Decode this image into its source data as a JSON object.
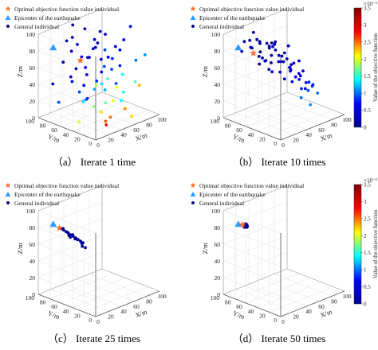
{
  "legend": {
    "optimal": "Optimal objective function value individual",
    "epicenter": "Epicenter of the earthquake",
    "general": "General individual"
  },
  "axes": {
    "xlabel": "X/m",
    "ylabel": "Y/m",
    "zlabel": "Z/m",
    "x_ticks": [
      "0",
      "20",
      "40",
      "60",
      "80",
      "100"
    ],
    "y_ticks": [
      "0",
      "20",
      "40",
      "60",
      "80",
      "100"
    ],
    "z_ticks": [
      "0",
      "20",
      "40",
      "60",
      "80",
      "100"
    ],
    "xlim": [
      0,
      100
    ],
    "ylim": [
      0,
      100
    ],
    "zlim": [
      0,
      100
    ]
  },
  "colorbar": {
    "label": "Value of the objective function",
    "exponent": "×10⁻³",
    "ticks": [
      "0",
      "0.5",
      "1",
      "1.5",
      "2",
      "2.5",
      "3",
      "3.5"
    ],
    "range": [
      0,
      3.5
    ],
    "colormap": [
      "#00008f",
      "#0000ff",
      "#00ffff",
      "#ffff00",
      "#ff0000",
      "#800000"
    ]
  },
  "colors": {
    "optimal": "#ff6f2b",
    "epicenter": "#2d9cff",
    "general_low": "#0a0a78"
  },
  "chart_data": [
    {
      "type": "scatter3d",
      "caption": "（a） Iterate 1 time",
      "epicenter": [
        10,
        85,
        85
      ],
      "optimal": [
        30,
        60,
        70
      ],
      "show_colorbar": false,
      "points": [
        [
          45,
          90,
          100,
          0.2
        ],
        [
          55,
          80,
          95,
          0.3
        ],
        [
          70,
          70,
          90,
          0.2
        ],
        [
          40,
          85,
          88,
          0.3
        ],
        [
          60,
          50,
          95,
          0.4
        ],
        [
          80,
          40,
          85,
          0.5
        ],
        [
          25,
          70,
          80,
          0.3
        ],
        [
          50,
          60,
          78,
          0.4
        ],
        [
          65,
          30,
          80,
          0.7
        ],
        [
          35,
          50,
          75,
          0.5
        ],
        [
          75,
          80,
          72,
          0.3
        ],
        [
          85,
          60,
          70,
          0.6
        ],
        [
          20,
          40,
          70,
          0.6
        ],
        [
          45,
          35,
          65,
          0.9
        ],
        [
          55,
          75,
          62,
          0.4
        ],
        [
          30,
          90,
          60,
          0.2
        ],
        [
          90,
          30,
          60,
          1.0
        ],
        [
          15,
          60,
          55,
          0.5
        ],
        [
          60,
          20,
          55,
          1.4
        ],
        [
          40,
          60,
          50,
          0.7
        ],
        [
          70,
          50,
          50,
          0.9
        ],
        [
          85,
          85,
          48,
          0.4
        ],
        [
          25,
          30,
          45,
          1.2
        ],
        [
          50,
          45,
          40,
          1.3
        ],
        [
          80,
          20,
          40,
          1.6
        ],
        [
          35,
          80,
          38,
          0.5
        ],
        [
          60,
          65,
          35,
          0.8
        ],
        [
          15,
          20,
          30,
          1.8
        ],
        [
          45,
          20,
          28,
          2.0
        ],
        [
          75,
          35,
          25,
          1.5
        ],
        [
          30,
          55,
          22,
          1.3
        ],
        [
          55,
          10,
          18,
          2.4
        ],
        [
          20,
          5,
          15,
          2.6
        ],
        [
          40,
          35,
          12,
          2.2
        ],
        [
          65,
          55,
          10,
          1.7
        ],
        [
          85,
          50,
          8,
          1.4
        ],
        [
          10,
          40,
          8,
          2.0
        ],
        [
          30,
          15,
          5,
          2.8
        ],
        [
          50,
          30,
          4,
          2.5
        ],
        [
          70,
          15,
          3,
          2.2
        ],
        [
          95,
          70,
          20,
          0.9
        ],
        [
          90,
          90,
          30,
          0.6
        ],
        [
          12,
          88,
          40,
          0.4
        ],
        [
          28,
          10,
          62,
          1.6
        ],
        [
          52,
          92,
          45,
          0.3
        ],
        [
          62,
          40,
          68,
          0.8
        ],
        [
          78,
          65,
          58,
          0.7
        ],
        [
          38,
          5,
          50,
          2.1
        ],
        [
          22,
          75,
          92,
          0.2
        ],
        [
          88,
          12,
          72,
          1.1
        ],
        [
          5,
          30,
          90,
          0.7
        ],
        [
          95,
          45,
          95,
          0.6
        ],
        [
          48,
          70,
          15,
          1.0
        ],
        [
          68,
          90,
          5,
          0.8
        ],
        [
          10,
          10,
          60,
          1.9
        ],
        [
          33,
          65,
          30,
          0.9
        ],
        [
          58,
          85,
          25,
          0.6
        ],
        [
          82,
          75,
          15,
          1.2
        ],
        [
          43,
          48,
          85,
          0.4
        ],
        [
          73,
          5,
          42,
          2.3
        ],
        [
          18,
          52,
          95,
          0.3
        ],
        [
          92,
          60,
          45,
          0.8
        ],
        [
          5,
          70,
          25,
          0.9
        ],
        [
          63,
          72,
          82,
          0.3
        ],
        [
          37,
          25,
          90,
          0.9
        ]
      ]
    },
    {
      "type": "scatter3d",
      "caption": "（b） Iterate 10 times",
      "epicenter": [
        10,
        85,
        85
      ],
      "optimal": [
        22,
        72,
        78
      ],
      "show_colorbar": true,
      "points": [
        [
          30,
          70,
          90,
          0.1
        ],
        [
          35,
          75,
          85,
          0.1
        ],
        [
          40,
          60,
          88,
          0.1
        ],
        [
          25,
          80,
          82,
          0.1
        ],
        [
          45,
          70,
          80,
          0.1
        ],
        [
          50,
          65,
          85,
          0.1
        ],
        [
          20,
          60,
          78,
          0.1
        ],
        [
          35,
          55,
          76,
          0.2
        ],
        [
          55,
          75,
          75,
          0.1
        ],
        [
          40,
          80,
          72,
          0.1
        ],
        [
          30,
          50,
          70,
          0.2
        ],
        [
          60,
          60,
          70,
          0.2
        ],
        [
          45,
          45,
          68,
          0.3
        ],
        [
          25,
          65,
          66,
          0.1
        ],
        [
          50,
          55,
          64,
          0.2
        ],
        [
          65,
          70,
          62,
          0.2
        ],
        [
          35,
          40,
          60,
          0.4
        ],
        [
          55,
          45,
          58,
          0.4
        ],
        [
          70,
          55,
          56,
          0.3
        ],
        [
          40,
          65,
          55,
          0.2
        ],
        [
          60,
          35,
          52,
          0.5
        ],
        [
          75,
          65,
          50,
          0.3
        ],
        [
          45,
          30,
          48,
          0.6
        ],
        [
          80,
          50,
          45,
          0.5
        ],
        [
          65,
          40,
          42,
          0.6
        ],
        [
          55,
          25,
          38,
          0.8
        ],
        [
          85,
          60,
          35,
          0.5
        ],
        [
          70,
          30,
          30,
          0.9
        ],
        [
          90,
          45,
          25,
          0.8
        ],
        [
          60,
          15,
          20,
          1.1
        ],
        [
          28,
          85,
          88,
          0.1
        ],
        [
          42,
          88,
          84,
          0.1
        ],
        [
          18,
          70,
          86,
          0.1
        ],
        [
          52,
          82,
          78,
          0.1
        ],
        [
          38,
          62,
          82,
          0.1
        ],
        [
          62,
          78,
          68,
          0.2
        ],
        [
          48,
          38,
          62,
          0.4
        ],
        [
          72,
          48,
          60,
          0.4
        ],
        [
          33,
          30,
          55,
          0.5
        ],
        [
          78,
          70,
          40,
          0.4
        ],
        [
          68,
          58,
          48,
          0.3
        ],
        [
          58,
          68,
          58,
          0.2
        ],
        [
          44,
          52,
          74,
          0.2
        ],
        [
          22,
          52,
          74,
          0.2
        ],
        [
          82,
          35,
          32,
          0.8
        ],
        [
          50,
          20,
          30,
          1.0
        ],
        [
          88,
          55,
          20,
          0.7
        ],
        [
          15,
          80,
          92,
          0.1
        ],
        [
          57,
          50,
          82,
          0.2
        ],
        [
          36,
          72,
          68,
          0.1
        ],
        [
          74,
          38,
          36,
          0.7
        ],
        [
          64,
          22,
          44,
          0.8
        ],
        [
          47,
          78,
          60,
          0.2
        ],
        [
          26,
          44,
          62,
          0.4
        ],
        [
          92,
          38,
          18,
          1.0
        ],
        [
          40,
          92,
          92,
          0.1
        ],
        [
          20,
          90,
          76,
          0.1
        ],
        [
          66,
          84,
          72,
          0.2
        ],
        [
          54,
          34,
          50,
          0.6
        ],
        [
          80,
          78,
          52,
          0.3
        ]
      ]
    },
    {
      "type": "scatter3d",
      "caption": "（c） Iterate 25 times",
      "epicenter": [
        10,
        85,
        85
      ],
      "optimal": [
        15,
        80,
        80
      ],
      "show_colorbar": false,
      "points": [
        [
          16,
          78,
          80,
          0.05
        ],
        [
          18,
          76,
          78,
          0.05
        ],
        [
          20,
          74,
          76,
          0.05
        ],
        [
          22,
          72,
          74,
          0.05
        ],
        [
          24,
          70,
          72,
          0.05
        ],
        [
          26,
          68,
          70,
          0.05
        ],
        [
          28,
          66,
          68,
          0.05
        ],
        [
          30,
          64,
          66,
          0.05
        ],
        [
          32,
          62,
          64,
          0.05
        ],
        [
          34,
          60,
          62,
          0.05
        ],
        [
          19,
          78,
          79,
          0.05
        ],
        [
          23,
          75,
          74,
          0.05
        ],
        [
          27,
          70,
          71,
          0.05
        ],
        [
          31,
          66,
          65,
          0.05
        ],
        [
          35,
          63,
          60,
          0.05
        ],
        [
          25,
          72,
          68,
          0.05
        ],
        [
          29,
          68,
          66,
          0.05
        ],
        [
          33,
          60,
          58,
          0.05
        ],
        [
          21,
          70,
          72,
          0.05
        ],
        [
          36,
          58,
          56,
          0.05
        ]
      ]
    },
    {
      "type": "scatter3d",
      "caption": "（d） Iterate 50 times",
      "epicenter": [
        10,
        85,
        85
      ],
      "optimal": [
        14,
        82,
        84
      ],
      "show_colorbar": true,
      "points": [
        [
          15,
          81,
          83,
          0.02
        ],
        [
          16,
          80,
          82,
          0.02
        ],
        [
          17,
          79,
          83,
          0.02
        ],
        [
          18,
          80,
          81,
          0.02
        ],
        [
          16,
          82,
          82,
          0.02
        ],
        [
          17,
          81,
          84,
          0.02
        ],
        [
          18,
          79,
          82,
          0.02
        ],
        [
          19,
          80,
          83,
          0.02
        ],
        [
          15,
          80,
          81,
          0.02
        ],
        [
          17,
          78,
          81,
          0.02
        ],
        [
          18,
          81,
          84,
          0.02
        ],
        [
          19,
          79,
          81,
          0.02
        ]
      ]
    }
  ]
}
